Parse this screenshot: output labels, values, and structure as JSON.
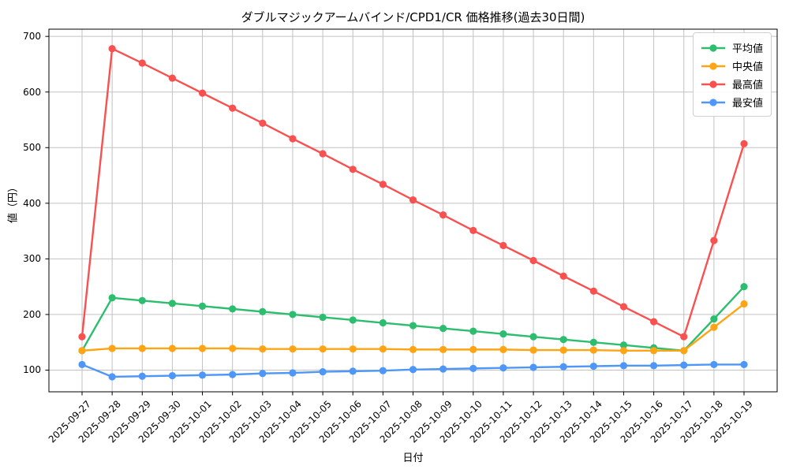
{
  "chart_data": {
    "type": "line",
    "title": "ダブルマジックアームバインド/CPD1/CR 価格推移(過去30日間)",
    "xlabel": "日付",
    "ylabel": "値（円）",
    "categories": [
      "2025-09-27",
      "2025-09-28",
      "2025-09-29",
      "2025-09-30",
      "2025-10-01",
      "2025-10-02",
      "2025-10-03",
      "2025-10-04",
      "2025-10-05",
      "2025-10-06",
      "2025-10-07",
      "2025-10-08",
      "2025-10-09",
      "2025-10-10",
      "2025-10-11",
      "2025-10-12",
      "2025-10-13",
      "2025-10-14",
      "2025-10-15",
      "2025-10-16",
      "2025-10-17",
      "2025-10-18",
      "2025-10-19"
    ],
    "series": [
      {
        "name": "平均値",
        "color": "#2cbe6e",
        "values": [
          135,
          230,
          225,
          220,
          215,
          210,
          205,
          200,
          195,
          190,
          185,
          180,
          175,
          170,
          165,
          160,
          155,
          150,
          145,
          140,
          135,
          192,
          250
        ]
      },
      {
        "name": "中央値",
        "color": "#ffa415",
        "values": [
          135,
          139,
          139,
          139,
          139,
          139,
          138,
          138,
          138,
          138,
          138,
          137,
          137,
          137,
          137,
          136,
          136,
          136,
          135,
          135,
          135,
          177,
          219
        ]
      },
      {
        "name": "最高値",
        "color": "#f95050",
        "values": [
          160,
          678,
          652,
          625,
          598,
          571,
          544,
          516,
          489,
          461,
          434,
          406,
          379,
          351,
          324,
          297,
          269,
          242,
          214,
          187,
          160,
          333,
          507
        ]
      },
      {
        "name": "最安値",
        "color": "#4e96f8",
        "values": [
          110,
          88,
          89,
          90,
          91,
          92,
          94,
          95,
          97,
          98,
          99,
          101,
          102,
          103,
          104,
          105,
          106,
          107,
          108,
          108,
          109,
          110,
          110
        ]
      }
    ],
    "ylim": [
      61,
      713
    ],
    "yticks": [
      100,
      200,
      300,
      400,
      500,
      600,
      700
    ],
    "grid": true,
    "legend_position": "upper right"
  }
}
